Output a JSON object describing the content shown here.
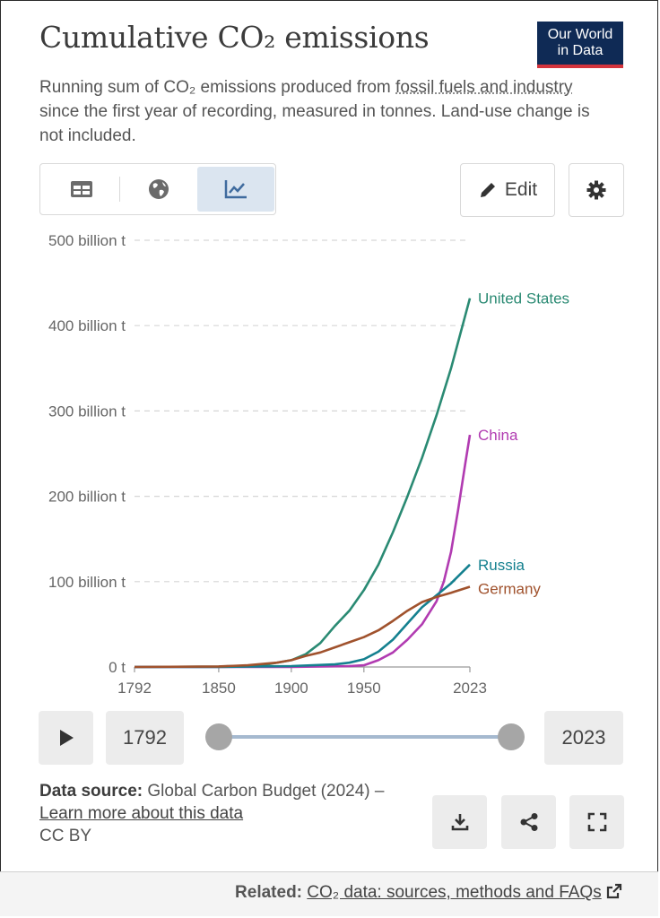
{
  "header": {
    "title": "Cumulative CO₂ emissions",
    "logo_line1": "Our World",
    "logo_line2": "in Data",
    "subtitle_pre": "Running sum of CO₂ emissions produced from ",
    "subtitle_link": "fossil fuels and industry",
    "subtitle_post": " since the first year of recording, measured in tonnes. Land-use change is not included."
  },
  "toolbar": {
    "tabs": [
      "table-icon",
      "globe-icon",
      "line-chart-icon"
    ],
    "active_tab": "line-chart-icon",
    "edit_label": "Edit",
    "settings_icon": "gear-icon"
  },
  "chart_data": {
    "type": "line",
    "title": "Cumulative CO₂ emissions",
    "xlabel": "",
    "ylabel": "",
    "xlim": [
      1792,
      2023
    ],
    "ylim": [
      0,
      500
    ],
    "x_ticks": [
      "1792",
      "1850",
      "1900",
      "1950",
      "2023"
    ],
    "y_ticks": [
      "0 t",
      "100 billion t",
      "200 billion t",
      "300 billion t",
      "400 billion t",
      "500 billion t"
    ],
    "y_unit": "billion t",
    "grid": "horizontal dashed",
    "legend": "end-of-line labels",
    "series": [
      {
        "name": "United States",
        "color": "#2a8a73",
        "points": [
          [
            1792,
            0
          ],
          [
            1850,
            0.5
          ],
          [
            1880,
            2
          ],
          [
            1900,
            8
          ],
          [
            1910,
            15
          ],
          [
            1920,
            28
          ],
          [
            1930,
            48
          ],
          [
            1940,
            66
          ],
          [
            1950,
            90
          ],
          [
            1960,
            120
          ],
          [
            1970,
            158
          ],
          [
            1980,
            200
          ],
          [
            1990,
            245
          ],
          [
            2000,
            295
          ],
          [
            2010,
            350
          ],
          [
            2023,
            432
          ]
        ]
      },
      {
        "name": "China",
        "color": "#b13bb1",
        "points": [
          [
            1792,
            0
          ],
          [
            1900,
            0
          ],
          [
            1940,
            1
          ],
          [
            1950,
            2
          ],
          [
            1960,
            8
          ],
          [
            1970,
            17
          ],
          [
            1980,
            32
          ],
          [
            1990,
            50
          ],
          [
            2000,
            77
          ],
          [
            2005,
            100
          ],
          [
            2010,
            135
          ],
          [
            2015,
            185
          ],
          [
            2020,
            240
          ],
          [
            2023,
            272
          ]
        ]
      },
      {
        "name": "Russia",
        "color": "#14808f",
        "points": [
          [
            1792,
            0
          ],
          [
            1850,
            0
          ],
          [
            1900,
            1
          ],
          [
            1930,
            3
          ],
          [
            1940,
            5
          ],
          [
            1950,
            9
          ],
          [
            1960,
            18
          ],
          [
            1970,
            32
          ],
          [
            1980,
            51
          ],
          [
            1990,
            70
          ],
          [
            2000,
            84
          ],
          [
            2010,
            98
          ],
          [
            2023,
            120
          ]
        ]
      },
      {
        "name": "Germany",
        "color": "#a0522d",
        "points": [
          [
            1792,
            0
          ],
          [
            1850,
            0.6
          ],
          [
            1870,
            2
          ],
          [
            1890,
            5
          ],
          [
            1900,
            8
          ],
          [
            1910,
            13
          ],
          [
            1920,
            17
          ],
          [
            1930,
            23
          ],
          [
            1940,
            29
          ],
          [
            1950,
            35
          ],
          [
            1960,
            43
          ],
          [
            1970,
            54
          ],
          [
            1980,
            66
          ],
          [
            1990,
            76
          ],
          [
            2000,
            82
          ],
          [
            2010,
            87
          ],
          [
            2023,
            94
          ]
        ]
      }
    ]
  },
  "timeline": {
    "play_icon": "play-icon",
    "start_year": "1792",
    "end_year": "2023"
  },
  "footer": {
    "source_label": "Data source:",
    "source_text": " Global Carbon Budget (2024) – ",
    "learn_more": "Learn more about this data",
    "license": "CC BY",
    "action_icons": [
      "download-icon",
      "share-icon",
      "fullscreen-icon"
    ],
    "related_label": "Related:",
    "related_link": "CO₂ data: sources, methods and FAQs"
  }
}
